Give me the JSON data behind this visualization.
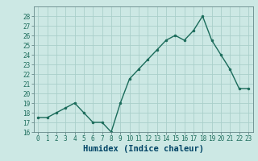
{
  "x": [
    0,
    1,
    2,
    3,
    4,
    5,
    6,
    7,
    8,
    9,
    10,
    11,
    12,
    13,
    14,
    15,
    16,
    17,
    18,
    19,
    20,
    21,
    22,
    23
  ],
  "y": [
    17.5,
    17.5,
    18.0,
    18.5,
    19.0,
    18.0,
    17.0,
    17.0,
    16.0,
    19.0,
    21.5,
    22.5,
    23.5,
    24.5,
    25.5,
    26.0,
    25.5,
    26.5,
    28.0,
    25.5,
    24.0,
    22.5,
    20.5,
    20.5
  ],
  "line_color": "#1a6b5a",
  "marker_color": "#1a6b5a",
  "bg_color": "#cce8e4",
  "grid_color": "#aacfca",
  "xlabel": "Humidex (Indice chaleur)",
  "xlabel_color": "#004466",
  "ylim": [
    16,
    29
  ],
  "xlim": [
    -0.5,
    23.5
  ],
  "yticks": [
    16,
    17,
    18,
    19,
    20,
    21,
    22,
    23,
    24,
    25,
    26,
    27,
    28
  ],
  "xticks": [
    0,
    1,
    2,
    3,
    4,
    5,
    6,
    7,
    8,
    9,
    10,
    11,
    12,
    13,
    14,
    15,
    16,
    17,
    18,
    19,
    20,
    21,
    22,
    23
  ],
  "tick_label_fontsize": 5.5,
  "xlabel_fontsize": 7.5,
  "tick_color": "#1a6b5a"
}
